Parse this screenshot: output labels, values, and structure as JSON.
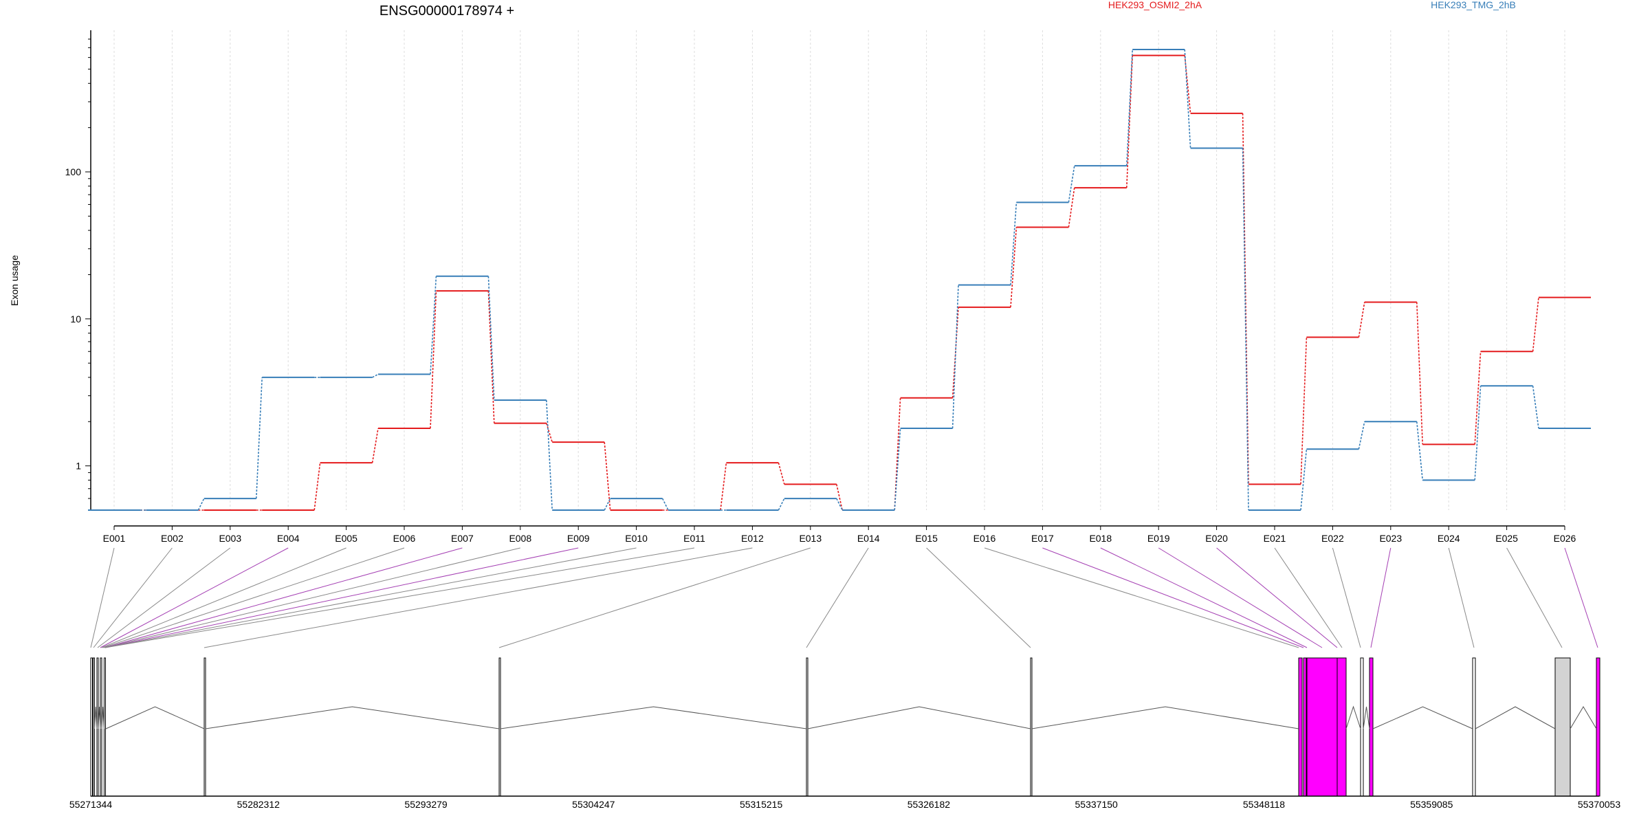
{
  "chart_data": {
    "type": "line",
    "title": "ENSG00000178974 +",
    "ylabel": "Exon usage",
    "xlabel": "",
    "y_scale": "log",
    "y_ticks": [
      1,
      10,
      100
    ],
    "y_tick_labels": [
      "1",
      "10",
      "100"
    ],
    "categories": [
      "E001",
      "E002",
      "E003",
      "E004",
      "E005",
      "E006",
      "E007",
      "E008",
      "E009",
      "E010",
      "E011",
      "E012",
      "E013",
      "E014",
      "E015",
      "E016",
      "E017",
      "E018",
      "E019",
      "E020",
      "E021",
      "E022",
      "E023",
      "E024",
      "E025",
      "E026"
    ],
    "series": [
      {
        "name": "HEK293_OSMI2_2hA",
        "color": "#e41a1c",
        "values": [
          0.5,
          0.5,
          0.5,
          0.5,
          1.05,
          1.8,
          15.5,
          1.95,
          1.45,
          0.5,
          0.5,
          1.05,
          0.75,
          0.5,
          2.9,
          12,
          42,
          78,
          620,
          250,
          0.75,
          7.5,
          13,
          1.4,
          6,
          14
        ]
      },
      {
        "name": "HEK293_TMG_2hB",
        "color": "#377eb8",
        "values": [
          0.5,
          0.5,
          0.6,
          4,
          4,
          4.2,
          19.5,
          2.8,
          0.5,
          0.6,
          0.5,
          0.5,
          0.6,
          0.5,
          1.8,
          17,
          62,
          110,
          680,
          145,
          0.5,
          1.3,
          2.0,
          0.8,
          3.5,
          1.8
        ]
      }
    ],
    "gene_model": {
      "coordinates": [
        "55271344",
        "55282312",
        "55293279",
        "55304247",
        "55315215",
        "55326182",
        "55337150",
        "55348118",
        "55359085",
        "55370053"
      ],
      "exon_highlight_color": "#ff00ff",
      "exon_color": "#d3d3d3"
    }
  }
}
